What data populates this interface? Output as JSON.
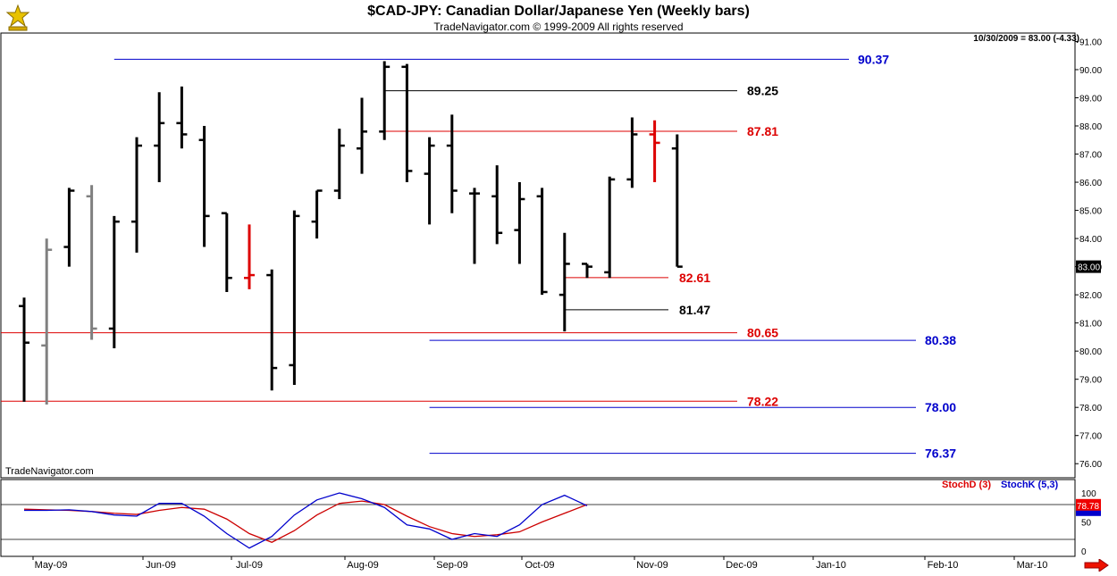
{
  "header": {
    "title": "$CAD-JPY:  Canadian Dollar/Japanese Yen  (Weekly bars)",
    "subtitle": "TradeNavigator.com © 1999-2009 All rights reserved",
    "last_info": "10/30/2009 = 83.00 (-4.33)",
    "watermark": "TradeNavigator.com",
    "last_price_label": "83.00",
    "osc_value_label": "78.78"
  },
  "oscillator": {
    "stoch_d_label": "StochD (3)",
    "stoch_k_label": "StochK (5,3)",
    "y_ticks": [
      "100",
      "50",
      "0"
    ],
    "y_tick_values": [
      100,
      50,
      0
    ],
    "upper_level": 80,
    "lower_level": 20,
    "k_values": [
      70,
      70,
      71,
      68,
      62,
      60,
      82,
      82,
      60,
      30,
      5,
      25,
      62,
      88,
      100,
      90,
      75,
      45,
      38,
      20,
      30,
      25,
      45,
      80,
      96,
      78
    ],
    "d_values": [
      72,
      71,
      70,
      68,
      65,
      63,
      70,
      75,
      72,
      55,
      30,
      15,
      35,
      62,
      82,
      86,
      80,
      60,
      42,
      30,
      25,
      28,
      33,
      50,
      65,
      80
    ],
    "k_color": "#0000cc",
    "d_color": "#cc0000"
  },
  "colors": {
    "up_bar": "#000000",
    "gray_bar": "#808080",
    "red_bar": "#dd0000",
    "blue_line": "#0000cc",
    "red_line": "#dd0000",
    "black_line": "#000000"
  },
  "chart_data": {
    "type": "ohlc",
    "title": "$CAD-JPY:  Canadian Dollar/Japanese Yen  (Weekly bars)",
    "y_range": [
      75.5,
      91.3
    ],
    "y_ticks": [
      "76.00",
      "77.00",
      "78.00",
      "79.00",
      "80.00",
      "81.00",
      "82.00",
      "83.00",
      "84.00",
      "85.00",
      "86.00",
      "87.00",
      "88.00",
      "89.00",
      "90.00",
      "91.00"
    ],
    "y_tick_values": [
      76,
      77,
      78,
      79,
      80,
      81,
      82,
      83,
      84,
      85,
      86,
      87,
      88,
      89,
      90,
      91
    ],
    "x_labels": [
      "May-09",
      "Jun-09",
      "Jul-09",
      "Aug-09",
      "Sep-09",
      "Oct-09",
      "Nov-09",
      "Dec-09",
      "Jan-10",
      "Feb-10",
      "Mar-10"
    ],
    "bars": [
      {
        "o": 81.6,
        "h": 81.9,
        "l": 78.2,
        "c": 80.3,
        "color": "black"
      },
      {
        "o": 80.2,
        "h": 84.0,
        "l": 78.1,
        "c": 83.6,
        "color": "gray"
      },
      {
        "o": 83.7,
        "h": 85.8,
        "l": 83.0,
        "c": 85.7,
        "color": "black"
      },
      {
        "o": 85.5,
        "h": 85.9,
        "l": 80.4,
        "c": 80.8,
        "color": "gray"
      },
      {
        "o": 80.8,
        "h": 84.8,
        "l": 80.1,
        "c": 84.6,
        "color": "black"
      },
      {
        "o": 84.6,
        "h": 87.6,
        "l": 83.5,
        "c": 87.3,
        "color": "black"
      },
      {
        "o": 87.3,
        "h": 89.2,
        "l": 86.0,
        "c": 88.1,
        "color": "black"
      },
      {
        "o": 88.1,
        "h": 89.4,
        "l": 87.2,
        "c": 87.7,
        "color": "black"
      },
      {
        "o": 87.5,
        "h": 88.0,
        "l": 83.7,
        "c": 84.8,
        "color": "black"
      },
      {
        "o": 84.9,
        "h": 84.9,
        "l": 82.1,
        "c": 82.6,
        "color": "black"
      },
      {
        "o": 82.6,
        "h": 84.5,
        "l": 82.2,
        "c": 82.7,
        "color": "red"
      },
      {
        "o": 82.7,
        "h": 82.9,
        "l": 78.6,
        "c": 79.4,
        "color": "black"
      },
      {
        "o": 79.5,
        "h": 85.0,
        "l": 78.8,
        "c": 84.8,
        "color": "black"
      },
      {
        "o": 84.6,
        "h": 85.7,
        "l": 84.0,
        "c": 85.7,
        "color": "black"
      },
      {
        "o": 85.7,
        "h": 87.9,
        "l": 85.4,
        "c": 87.3,
        "color": "black"
      },
      {
        "o": 87.2,
        "h": 89.0,
        "l": 86.3,
        "c": 87.8,
        "color": "black"
      },
      {
        "o": 87.8,
        "h": 90.3,
        "l": 87.5,
        "c": 90.1,
        "color": "black"
      },
      {
        "o": 90.1,
        "h": 90.2,
        "l": 86.0,
        "c": 86.4,
        "color": "black"
      },
      {
        "o": 86.3,
        "h": 87.6,
        "l": 84.5,
        "c": 87.3,
        "color": "black"
      },
      {
        "o": 87.3,
        "h": 88.4,
        "l": 84.9,
        "c": 85.7,
        "color": "black"
      },
      {
        "o": 85.6,
        "h": 85.8,
        "l": 83.1,
        "c": 85.6,
        "color": "black"
      },
      {
        "o": 85.5,
        "h": 86.6,
        "l": 83.8,
        "c": 84.2,
        "color": "black"
      },
      {
        "o": 84.3,
        "h": 86.0,
        "l": 83.1,
        "c": 85.4,
        "color": "black"
      },
      {
        "o": 85.5,
        "h": 85.8,
        "l": 82.0,
        "c": 82.1,
        "color": "black"
      },
      {
        "o": 82.0,
        "h": 84.2,
        "l": 80.7,
        "c": 83.1,
        "color": "black"
      },
      {
        "o": 83.1,
        "h": 83.1,
        "l": 82.6,
        "c": 83.0,
        "color": "black"
      },
      {
        "o": 82.8,
        "h": 86.2,
        "l": 82.6,
        "c": 86.1,
        "color": "black"
      },
      {
        "o": 86.1,
        "h": 88.3,
        "l": 85.8,
        "c": 87.7,
        "color": "black"
      },
      {
        "o": 87.7,
        "h": 88.2,
        "l": 86.0,
        "c": 87.4,
        "color": "red"
      },
      {
        "o": 87.2,
        "h": 87.7,
        "l": 83.0,
        "c": 83.0,
        "color": "black"
      }
    ],
    "levels": [
      {
        "value": 90.37,
        "label": "90.37",
        "color": "blue",
        "start_bar": 4,
        "label_side": "right"
      },
      {
        "value": 89.25,
        "label": "89.25",
        "color": "black",
        "start_bar": 16,
        "label_side": "mid"
      },
      {
        "value": 87.81,
        "label": "87.81",
        "color": "red",
        "start_bar": 16,
        "label_side": "mid"
      },
      {
        "value": 82.61,
        "label": "82.61",
        "color": "red",
        "start_bar": 24,
        "label_side": "near"
      },
      {
        "value": 81.47,
        "label": "81.47",
        "color": "black",
        "start_bar": 24,
        "label_side": "near"
      },
      {
        "value": 80.65,
        "label": "80.65",
        "color": "red",
        "start_bar": -1,
        "label_side": "mid"
      },
      {
        "value": 80.38,
        "label": "80.38",
        "color": "blue",
        "start_bar": 18,
        "label_side": "right"
      },
      {
        "value": 78.22,
        "label": "78.22",
        "color": "red",
        "start_bar": -1,
        "label_side": "mid"
      },
      {
        "value": 78.0,
        "label": "78.00",
        "color": "blue",
        "start_bar": 18,
        "label_side": "right"
      },
      {
        "value": 76.37,
        "label": "76.37",
        "color": "blue",
        "start_bar": 18,
        "label_side": "right"
      }
    ]
  }
}
